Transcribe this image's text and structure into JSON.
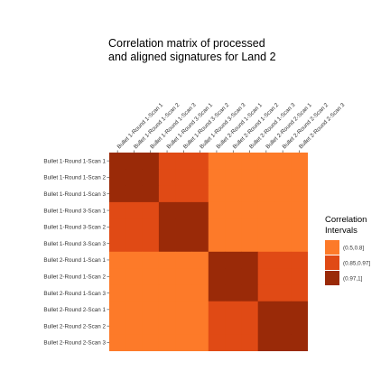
{
  "chart_data": {
    "type": "heatmap",
    "title_lines": [
      "Correlation matrix of processed",
      "and aligned signatures for Land 2"
    ],
    "xlabel": "",
    "ylabel": "",
    "labels": [
      "Bullet 1-Round 1-Scan 1",
      "Bullet 1-Round 1-Scan 2",
      "Bullet 1-Round 1-Scan 3",
      "Bullet 1-Round 3-Scan 1",
      "Bullet 1-Round 3-Scan 2",
      "Bullet 1-Round 3-Scan 3",
      "Bullet 2-Round 1-Scan 1",
      "Bullet 2-Round 1-Scan 2",
      "Bullet 2-Round 1-Scan 3",
      "Bullet 2-Round 2-Scan 1",
      "Bullet 2-Round 2-Scan 2",
      "Bullet 2-Round 2-Scan 3"
    ],
    "matrix": [
      [
        2,
        2,
        2,
        1,
        1,
        1,
        0,
        0,
        0,
        0,
        0,
        0
      ],
      [
        2,
        2,
        2,
        1,
        1,
        1,
        0,
        0,
        0,
        0,
        0,
        0
      ],
      [
        2,
        2,
        2,
        1,
        1,
        1,
        0,
        0,
        0,
        0,
        0,
        0
      ],
      [
        1,
        1,
        1,
        2,
        2,
        2,
        0,
        0,
        0,
        0,
        0,
        0
      ],
      [
        1,
        1,
        1,
        2,
        2,
        2,
        0,
        0,
        0,
        0,
        0,
        0
      ],
      [
        1,
        1,
        1,
        2,
        2,
        2,
        0,
        0,
        0,
        0,
        0,
        0
      ],
      [
        0,
        0,
        0,
        0,
        0,
        0,
        2,
        2,
        2,
        1,
        1,
        1
      ],
      [
        0,
        0,
        0,
        0,
        0,
        0,
        2,
        2,
        2,
        1,
        1,
        1
      ],
      [
        0,
        0,
        0,
        0,
        0,
        0,
        2,
        2,
        2,
        1,
        1,
        1
      ],
      [
        0,
        0,
        0,
        0,
        0,
        0,
        1,
        1,
        1,
        2,
        2,
        2
      ],
      [
        0,
        0,
        0,
        0,
        0,
        0,
        1,
        1,
        1,
        2,
        2,
        2
      ],
      [
        0,
        0,
        0,
        0,
        0,
        0,
        1,
        1,
        1,
        2,
        2,
        2
      ]
    ],
    "legend": {
      "title_lines": [
        "Correlation",
        "Intervals"
      ],
      "placement": "right",
      "categories": [
        "(0.5,0.8]",
        "(0.85,0.97]",
        "(0.97,1]"
      ],
      "colors": [
        "#fd7a29",
        "#e04a15",
        "#9a2a08"
      ]
    },
    "grid": false
  }
}
